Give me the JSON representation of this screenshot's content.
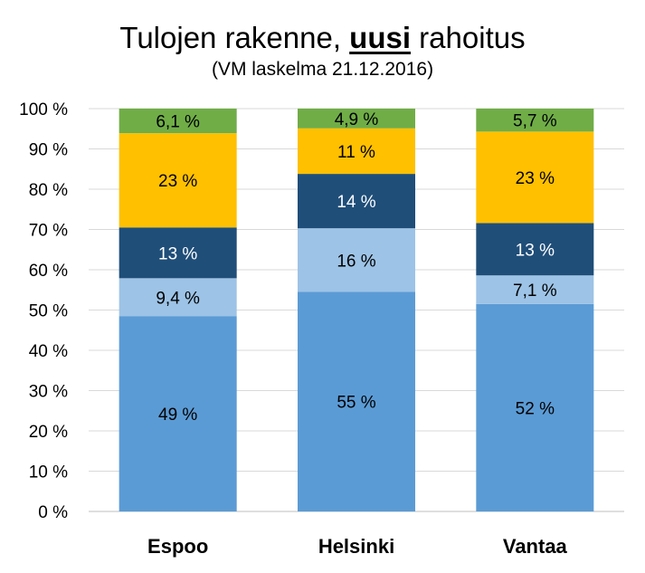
{
  "chart_data": {
    "type": "bar",
    "stacked": true,
    "title_parts": [
      "Tulojen rakenne, ",
      "uusi",
      " rahoitus"
    ],
    "subtitle": "(VM laskelma 21.12.2016)",
    "categories": [
      "Espoo",
      "Helsinki",
      "Vantaa"
    ],
    "ylim": [
      0,
      100
    ],
    "yticks": [
      "0 %",
      "10 %",
      "20 %",
      "30 %",
      "40 %",
      "50 %",
      "60 %",
      "70 %",
      "80 %",
      "90 %",
      "100 %"
    ],
    "grid": true,
    "series": [
      {
        "color": "#5b9bd5",
        "values": [
          48.5,
          54.5,
          51.5
        ],
        "labels": [
          "49 %",
          "55 %",
          "52 %"
        ]
      },
      {
        "color": "#9dc3e6",
        "values": [
          9.4,
          15.8,
          7.1
        ],
        "labels": [
          "9,4 %",
          "16 %",
          "7,1 %"
        ]
      },
      {
        "color": "#1f4e79",
        "values": [
          12.6,
          13.5,
          13.0
        ],
        "labels": [
          "13 %",
          "14 %",
          "13 %"
        ]
      },
      {
        "color": "#ffc000",
        "values": [
          23.4,
          11.3,
          22.7
        ],
        "labels": [
          "23 %",
          "11 %",
          "23 %"
        ]
      },
      {
        "color": "#70ad47",
        "values": [
          6.1,
          4.9,
          5.7
        ],
        "labels": [
          "6,1 %",
          "4,9 %",
          "5,7 %"
        ]
      }
    ]
  }
}
